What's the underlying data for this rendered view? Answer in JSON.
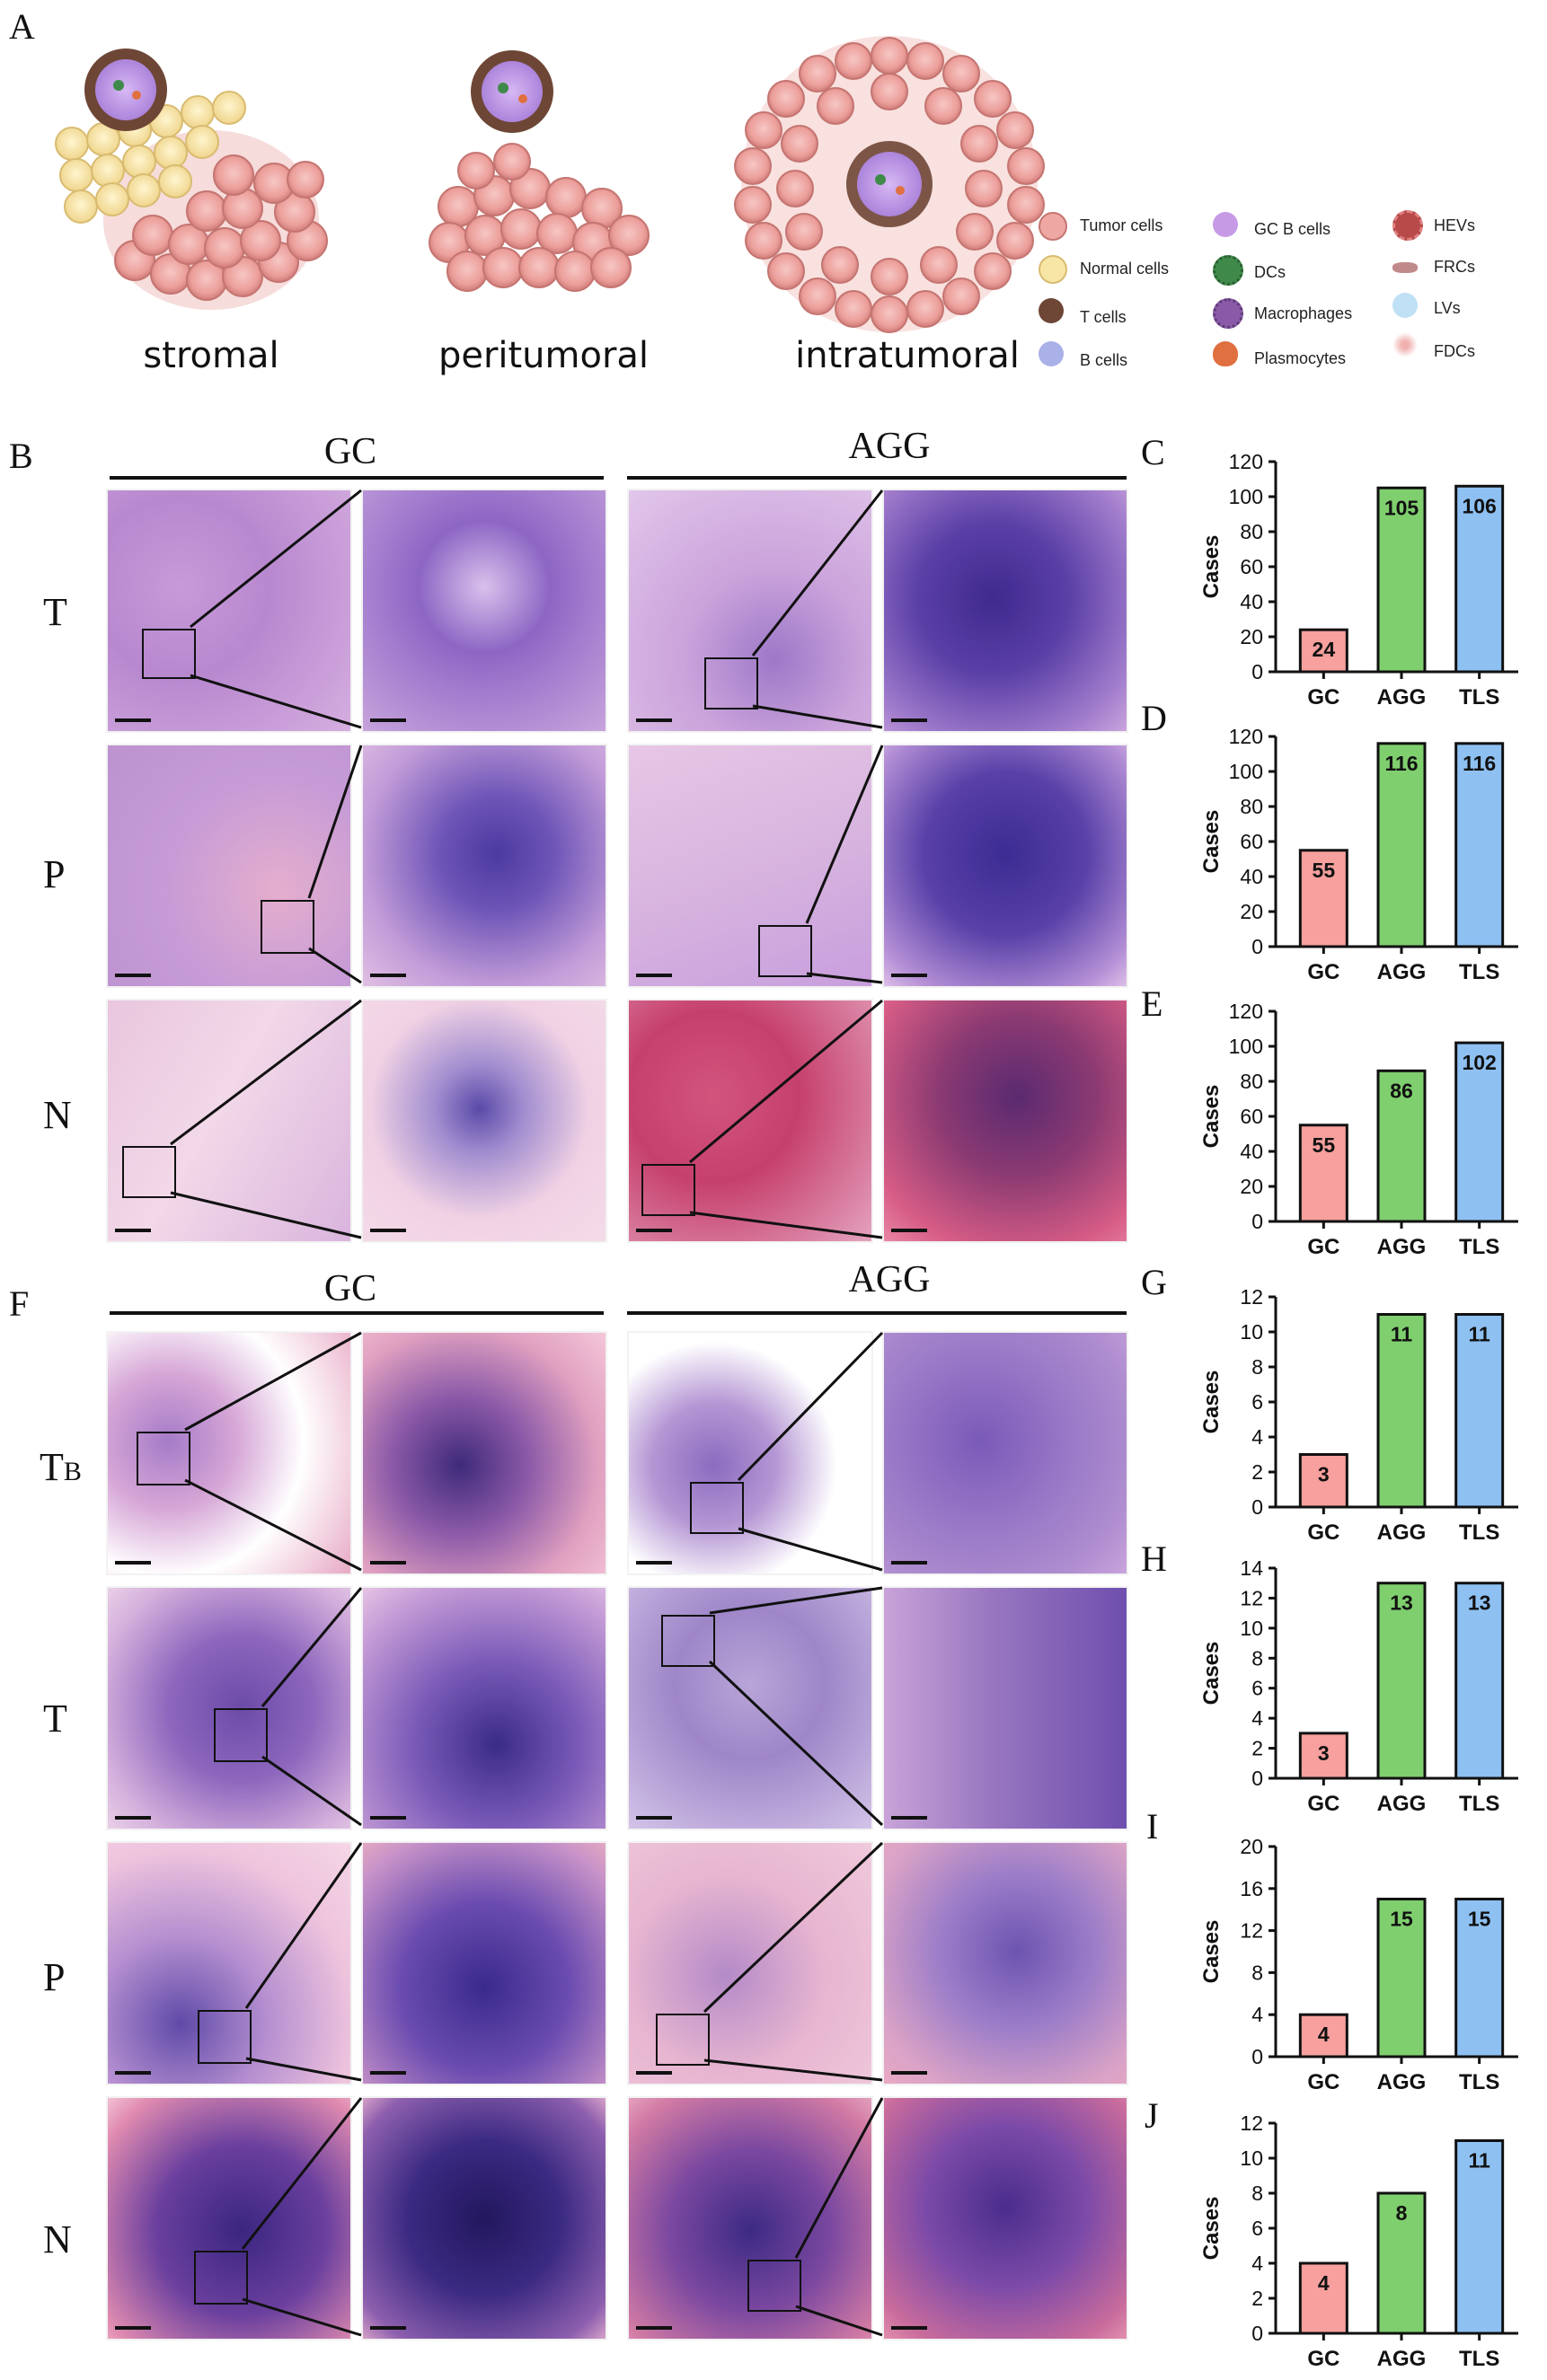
{
  "panel_letters": {
    "A": "A",
    "B": "B",
    "C": "C",
    "D": "D",
    "E": "E",
    "F": "F",
    "G": "G",
    "H": "H",
    "I": "I",
    "J": "J"
  },
  "schematic": {
    "locations": [
      "stromal",
      "peritumoral",
      "intratumoral"
    ],
    "legend": [
      {
        "label": "Tumor cells",
        "color": "#eea7a3",
        "icon": "tumor-cell-icon"
      },
      {
        "label": "Normal cells",
        "color": "#f7e6a6",
        "icon": "normal-cell-icon"
      },
      {
        "label": "T cells",
        "color": "#6e4636",
        "icon": "t-cell-icon"
      },
      {
        "label": "B cells",
        "color": "#aab0e8",
        "icon": "b-cell-icon"
      },
      {
        "label": "GC B cells",
        "color": "#c79ae6",
        "icon": "gc-b-cell-icon"
      },
      {
        "label": "DCs",
        "color": "#3f8a4a",
        "icon": "dendritic-cell-icon"
      },
      {
        "label": "Macrophages",
        "color": "#8a5aa8",
        "icon": "macrophage-icon"
      },
      {
        "label": "Plasmocytes",
        "color": "#e07040",
        "icon": "plasmocyte-icon"
      },
      {
        "label": "HEVs",
        "color": "#b84a4a",
        "icon": "hev-icon"
      },
      {
        "label": "FRCs",
        "color": "#c08a8a",
        "icon": "frc-icon"
      },
      {
        "label": "LVs",
        "color": "#bfe0f5",
        "icon": "lv-icon"
      },
      {
        "label": "FDCs",
        "color": "#f0b0b0",
        "icon": "fdc-icon"
      }
    ]
  },
  "histology_B": {
    "groups": [
      "GC",
      "AGG"
    ],
    "rows": [
      "T",
      "P",
      "N"
    ]
  },
  "histology_F": {
    "groups": [
      "GC",
      "AGG"
    ],
    "rows": [
      "TB",
      "T",
      "P",
      "N"
    ],
    "row_display": [
      {
        "main": "T",
        "sub": "B"
      },
      {
        "main": "T",
        "sub": ""
      },
      {
        "main": "P",
        "sub": ""
      },
      {
        "main": "N",
        "sub": ""
      }
    ]
  },
  "colors": {
    "GC": "#f7a09e",
    "AGG": "#7fcf6e",
    "TLS": "#8ec0f2"
  },
  "chart_data": [
    {
      "panel": "C",
      "type": "bar",
      "categories": [
        "GC",
        "AGG",
        "TLS"
      ],
      "values": [
        24,
        105,
        106
      ],
      "ylabel": "Cases",
      "ylim": [
        0,
        120
      ],
      "yticks": [
        0,
        20,
        40,
        60,
        80,
        100,
        120
      ]
    },
    {
      "panel": "D",
      "type": "bar",
      "categories": [
        "GC",
        "AGG",
        "TLS"
      ],
      "values": [
        55,
        116,
        116
      ],
      "ylabel": "Cases",
      "ylim": [
        0,
        120
      ],
      "yticks": [
        0,
        20,
        40,
        60,
        80,
        100,
        120
      ]
    },
    {
      "panel": "E",
      "type": "bar",
      "categories": [
        "GC",
        "AGG",
        "TLS"
      ],
      "values": [
        55,
        86,
        102
      ],
      "ylabel": "Cases",
      "ylim": [
        0,
        120
      ],
      "yticks": [
        0,
        20,
        40,
        60,
        80,
        100,
        120
      ]
    },
    {
      "panel": "G",
      "type": "bar",
      "categories": [
        "GC",
        "AGG",
        "TLS"
      ],
      "values": [
        3,
        11,
        11
      ],
      "ylabel": "Cases",
      "ylim": [
        0,
        12
      ],
      "yticks": [
        0,
        2,
        4,
        6,
        8,
        10,
        12
      ]
    },
    {
      "panel": "H",
      "type": "bar",
      "categories": [
        "GC",
        "AGG",
        "TLS"
      ],
      "values": [
        3,
        13,
        13
      ],
      "ylabel": "Cases",
      "ylim": [
        0,
        14
      ],
      "yticks": [
        0,
        2,
        4,
        6,
        8,
        10,
        12,
        14
      ]
    },
    {
      "panel": "I",
      "type": "bar",
      "categories": [
        "GC",
        "AGG",
        "TLS"
      ],
      "values": [
        4,
        15,
        15
      ],
      "ylabel": "Cases",
      "ylim": [
        0,
        20
      ],
      "yticks": [
        0,
        4,
        8,
        12,
        16,
        20
      ]
    },
    {
      "panel": "J",
      "type": "bar",
      "categories": [
        "GC",
        "AGG",
        "TLS"
      ],
      "values": [
        4,
        8,
        11
      ],
      "ylabel": "Cases",
      "ylim": [
        0,
        12
      ],
      "yticks": [
        0,
        2,
        4,
        6,
        8,
        10,
        12
      ]
    }
  ]
}
